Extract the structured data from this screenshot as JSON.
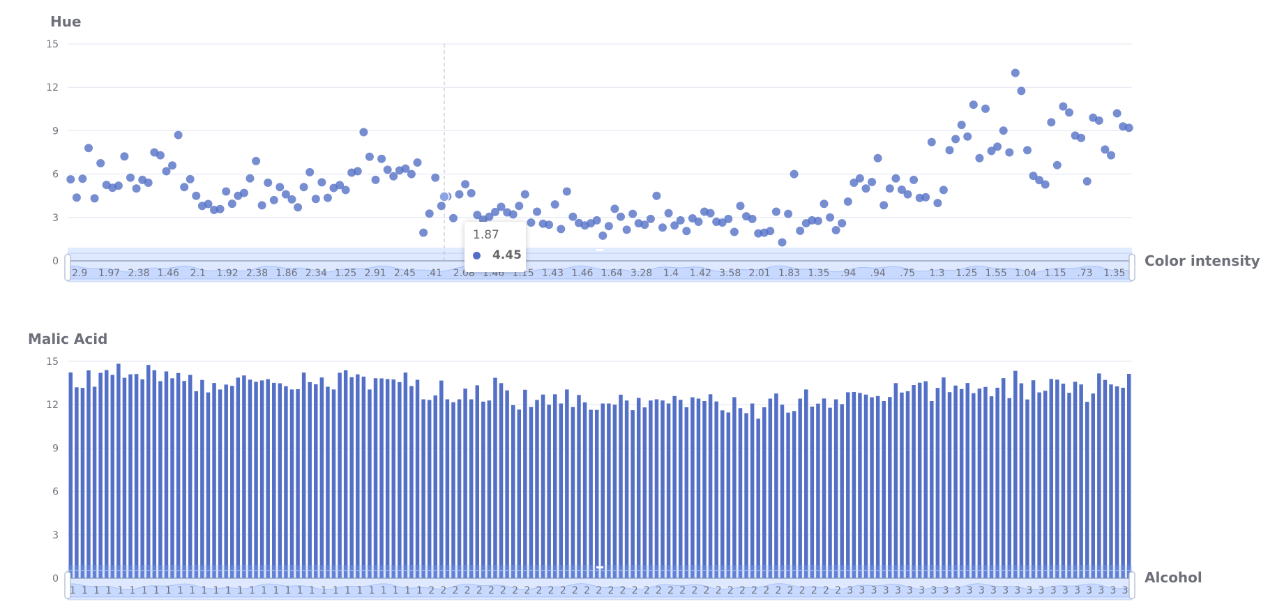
{
  "chart_data": [
    {
      "type": "scatter",
      "ylabel": "Hue",
      "xlabel": "Color intensity",
      "ylim": [
        0,
        15
      ],
      "yticks": [
        "0",
        "3",
        "6",
        "9",
        "12",
        "15"
      ],
      "color": "#5470c6",
      "x_tick_labels": [
        "2.9",
        "1.97",
        "2.38",
        "1.46",
        "2.1",
        "1.92",
        "2.38",
        "1.86",
        "2.34",
        "1.25",
        "2.91",
        "2.45",
        ".41",
        "2.08",
        "1.46",
        "1.15",
        "1.43",
        "1.46",
        "1.64",
        "3.28",
        "1.4",
        "1.42",
        "3.58",
        "2.01",
        "1.83",
        "1.35",
        ".94",
        ".94",
        ".75",
        "1.3",
        "1.25",
        "1.55",
        "1.04",
        "1.15",
        ".73",
        "1.35"
      ],
      "values": [
        5.64,
        4.38,
        5.68,
        7.8,
        4.32,
        6.75,
        5.25,
        5.05,
        5.2,
        7.22,
        5.75,
        5.0,
        5.6,
        5.4,
        7.5,
        7.3,
        6.2,
        6.6,
        8.7,
        5.1,
        5.65,
        4.5,
        3.8,
        3.93,
        3.52,
        3.58,
        4.8,
        3.95,
        4.5,
        4.7,
        5.7,
        6.9,
        3.84,
        5.4,
        4.2,
        5.1,
        4.6,
        4.25,
        3.7,
        5.1,
        6.13,
        4.28,
        5.43,
        4.36,
        5.04,
        5.24,
        4.9,
        6.1,
        6.2,
        8.9,
        7.2,
        5.6,
        7.05,
        6.3,
        5.85,
        6.25,
        6.38,
        6.0,
        6.8,
        1.95,
        3.27,
        5.75,
        3.8,
        4.45,
        2.95,
        4.6,
        5.3,
        4.68,
        3.17,
        2.85,
        3.05,
        3.38,
        3.74,
        3.35,
        3.21,
        3.8,
        4.6,
        2.65,
        3.4,
        2.57,
        2.5,
        3.9,
        2.2,
        4.8,
        3.05,
        2.62,
        2.45,
        2.6,
        2.8,
        1.74,
        2.4,
        3.6,
        3.05,
        2.15,
        3.25,
        2.6,
        2.5,
        2.9,
        4.5,
        2.3,
        3.3,
        2.45,
        2.8,
        2.06,
        2.94,
        2.7,
        3.4,
        3.3,
        2.7,
        2.65,
        2.9,
        2.0,
        3.8,
        3.08,
        2.9,
        1.9,
        1.95,
        2.06,
        3.4,
        1.28,
        3.25,
        6.0,
        2.08,
        2.6,
        2.8,
        2.76,
        3.94,
        3.0,
        2.12,
        2.6,
        4.1,
        5.4,
        5.7,
        5.0,
        5.45,
        7.1,
        3.85,
        5.0,
        5.7,
        4.92,
        4.6,
        5.6,
        4.35,
        4.4,
        8.21,
        4.0,
        4.9,
        7.65,
        8.42,
        9.4,
        8.6,
        10.8,
        7.1,
        10.52,
        7.6,
        7.9,
        9.01,
        7.5,
        13.0,
        11.75,
        7.65,
        5.88,
        5.58,
        5.28,
        9.58,
        6.62,
        10.68,
        10.26,
        8.66,
        8.5,
        5.5,
        9.9,
        9.7,
        7.7,
        7.3,
        10.2,
        9.3,
        9.2
      ],
      "tooltip": {
        "x": "1.87",
        "y": "4.45"
      }
    },
    {
      "type": "bar",
      "ylabel": "Malic Acid",
      "xlabel": "Alcohol",
      "ylim": [
        0,
        15
      ],
      "yticks": [
        "0",
        "3",
        "6",
        "9",
        "12",
        "15"
      ],
      "color": "#5470c6",
      "categories": [
        "1",
        "1",
        "1",
        "1",
        "1",
        "1",
        "1",
        "1",
        "1",
        "1",
        "1",
        "1",
        "1",
        "1",
        "1",
        "1",
        "1",
        "1",
        "1",
        "1",
        "1",
        "1",
        "1",
        "1",
        "1",
        "1",
        "1",
        "1",
        "1",
        "1",
        "1",
        "1",
        "1",
        "1",
        "1",
        "1",
        "1",
        "1",
        "1",
        "1",
        "1",
        "1",
        "1",
        "1",
        "1",
        "1",
        "1",
        "1",
        "1",
        "1",
        "1",
        "1",
        "1",
        "1",
        "1",
        "1",
        "1",
        "1",
        "1",
        "2",
        "2",
        "2",
        "2",
        "2",
        "2",
        "2",
        "2",
        "2",
        "2",
        "2",
        "2",
        "2",
        "2",
        "2",
        "2",
        "2",
        "2",
        "2",
        "2",
        "2",
        "2",
        "2",
        "2",
        "2",
        "2",
        "2",
        "2",
        "2",
        "2",
        "2",
        "2",
        "2",
        "2",
        "2",
        "2",
        "2",
        "2",
        "2",
        "2",
        "2",
        "2",
        "2",
        "2",
        "2",
        "2",
        "2",
        "2",
        "2",
        "2",
        "2",
        "2",
        "2",
        "2",
        "2",
        "2",
        "2",
        "2",
        "2",
        "2",
        "2",
        "2",
        "2",
        "2",
        "2",
        "2",
        "2",
        "2",
        "2",
        "2",
        "2",
        "3",
        "3",
        "3",
        "3",
        "3",
        "3",
        "3",
        "3",
        "3",
        "3",
        "3",
        "3",
        "3",
        "3",
        "3",
        "3",
        "3",
        "3",
        "3",
        "3",
        "3",
        "3",
        "3",
        "3",
        "3",
        "3",
        "3",
        "3",
        "3",
        "3",
        "3",
        "3",
        "3",
        "3",
        "3",
        "3",
        "3",
        "3",
        "3",
        "3",
        "3",
        "3",
        "3",
        "3",
        "3",
        "3",
        "3",
        "3"
      ],
      "values": [
        14.23,
        13.2,
        13.16,
        14.37,
        13.24,
        14.2,
        14.39,
        14.06,
        14.83,
        13.86,
        14.1,
        14.12,
        13.75,
        14.75,
        14.38,
        13.63,
        14.3,
        13.83,
        14.19,
        13.64,
        14.06,
        12.93,
        13.71,
        12.85,
        13.5,
        13.05,
        13.39,
        13.3,
        13.87,
        14.02,
        13.73,
        13.58,
        13.68,
        13.76,
        13.51,
        13.48,
        13.28,
        13.05,
        13.07,
        14.22,
        13.56,
        13.41,
        13.88,
        13.24,
        13.05,
        14.21,
        14.38,
        13.9,
        14.1,
        13.94,
        13.05,
        13.83,
        13.82,
        13.77,
        13.74,
        13.56,
        14.22,
        13.29,
        13.72,
        12.37,
        12.33,
        12.64,
        13.67,
        12.37,
        12.17,
        12.37,
        13.11,
        12.37,
        13.34,
        12.21,
        12.29,
        13.86,
        13.49,
        12.99,
        11.96,
        11.66,
        13.03,
        11.84,
        12.33,
        12.7,
        12.0,
        12.72,
        12.08,
        13.05,
        11.84,
        12.67,
        12.16,
        11.65,
        11.64,
        12.08,
        12.08,
        12.0,
        12.69,
        12.29,
        11.62,
        12.47,
        11.81,
        12.29,
        12.37,
        12.29,
        12.08,
        12.6,
        12.34,
        11.82,
        12.51,
        12.42,
        12.25,
        12.72,
        12.22,
        11.61,
        11.46,
        12.52,
        11.76,
        11.41,
        12.08,
        11.03,
        11.82,
        12.42,
        12.77,
        12.0,
        11.45,
        11.56,
        12.42,
        13.05,
        11.87,
        12.07,
        12.43,
        11.79,
        12.37,
        12.04,
        12.86,
        12.88,
        12.81,
        12.7,
        12.51,
        12.6,
        12.25,
        12.53,
        13.49,
        12.84,
        12.93,
        13.36,
        13.52,
        13.62,
        12.25,
        13.16,
        13.88,
        12.87,
        13.32,
        13.08,
        13.5,
        12.79,
        13.11,
        13.23,
        12.58,
        13.17,
        13.84,
        12.45,
        14.34,
        13.48,
        12.36,
        13.69,
        12.85,
        12.96,
        13.78,
        13.73,
        13.45,
        12.82,
        13.58,
        13.4,
        12.2,
        12.77,
        14.16,
        13.71,
        13.4,
        13.27,
        13.17,
        14.13
      ]
    }
  ]
}
